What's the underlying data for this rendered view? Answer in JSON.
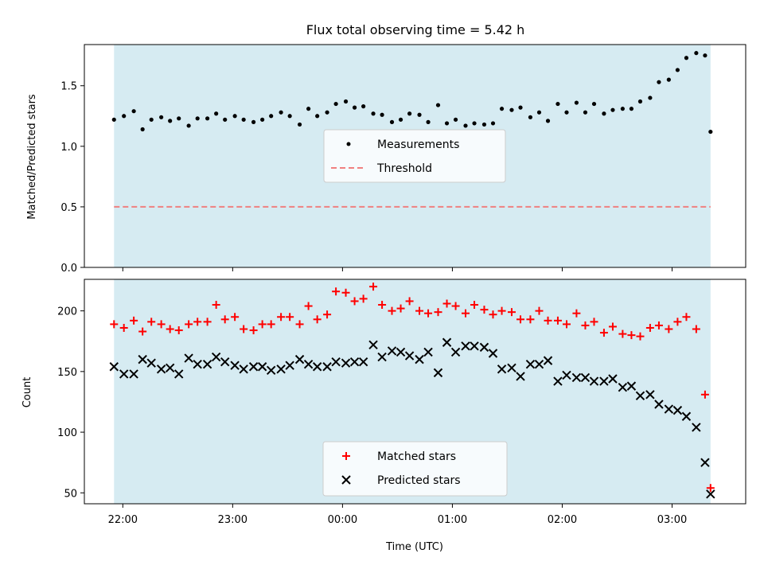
{
  "title": "Flux total observing time = 5.42 h",
  "chart_data": [
    {
      "type": "scatter",
      "ylabel": "Matched/Predicted stars",
      "xlabel": "",
      "x_ticks": [
        "22:00",
        "23:00",
        "00:00",
        "01:00",
        "02:00",
        "03:00"
      ],
      "y_ticks": [
        "0.0",
        "0.5",
        "1.0",
        "1.5"
      ],
      "ylim": [
        0,
        1.84
      ],
      "xlim": [
        -0.35,
        5.67
      ],
      "x_unit": "hours after 22:00 UTC",
      "shaded_span": [
        -0.08,
        5.35
      ],
      "shade_color": "#add8e6",
      "legend_position": "center",
      "series": [
        {
          "name": "Measurements",
          "marker": "dot",
          "color": "#000000",
          "x": [
            -0.08,
            0.01,
            0.1,
            0.18,
            0.26,
            0.35,
            0.43,
            0.51,
            0.6,
            0.68,
            0.77,
            0.85,
            0.93,
            1.02,
            1.1,
            1.19,
            1.27,
            1.35,
            1.44,
            1.52,
            1.61,
            1.69,
            1.77,
            1.86,
            1.94,
            2.03,
            2.11,
            2.19,
            2.28,
            2.36,
            2.45,
            2.53,
            2.61,
            2.7,
            2.78,
            2.87,
            2.95,
            3.03,
            3.12,
            3.2,
            3.29,
            3.37,
            3.45,
            3.54,
            3.62,
            3.71,
            3.79,
            3.87,
            3.96,
            4.04,
            4.13,
            4.21,
            4.29,
            4.38,
            4.46,
            4.55,
            4.63,
            4.71,
            4.8,
            4.88,
            4.97,
            5.05,
            5.13,
            5.22,
            5.3,
            5.35
          ],
          "y": [
            1.22,
            1.25,
            1.29,
            1.14,
            1.22,
            1.24,
            1.21,
            1.23,
            1.17,
            1.23,
            1.23,
            1.27,
            1.22,
            1.25,
            1.22,
            1.2,
            1.22,
            1.25,
            1.28,
            1.25,
            1.18,
            1.31,
            1.25,
            1.28,
            1.35,
            1.37,
            1.32,
            1.33,
            1.27,
            1.26,
            1.2,
            1.22,
            1.27,
            1.26,
            1.2,
            1.34,
            1.19,
            1.22,
            1.17,
            1.19,
            1.18,
            1.19,
            1.31,
            1.3,
            1.32,
            1.24,
            1.28,
            1.21,
            1.35,
            1.28,
            1.36,
            1.28,
            1.35,
            1.27,
            1.3,
            1.31,
            1.31,
            1.37,
            1.4,
            1.53,
            1.55,
            1.63,
            1.73,
            1.77,
            1.75,
            1.12
          ]
        },
        {
          "name": "Threshold",
          "marker": "dashed-line",
          "color": "#f08080",
          "x": [
            -0.08,
            5.35
          ],
          "y": [
            0.5,
            0.5
          ]
        }
      ]
    },
    {
      "type": "scatter",
      "ylabel": "Count",
      "xlabel": "Time (UTC)",
      "x_ticks": [
        "22:00",
        "23:00",
        "00:00",
        "01:00",
        "02:00",
        "03:00"
      ],
      "y_ticks": [
        "50",
        "100",
        "150",
        "200"
      ],
      "ylim": [
        41,
        226
      ],
      "xlim": [
        -0.35,
        5.67
      ],
      "x_unit": "hours after 22:00 UTC",
      "shaded_span": [
        -0.08,
        5.35
      ],
      "shade_color": "#add8e6",
      "legend_position": "lower center",
      "series": [
        {
          "name": "Matched stars",
          "marker": "plus",
          "color": "#ff0000",
          "x": [
            -0.08,
            0.01,
            0.1,
            0.18,
            0.26,
            0.35,
            0.43,
            0.51,
            0.6,
            0.68,
            0.77,
            0.85,
            0.93,
            1.02,
            1.1,
            1.19,
            1.27,
            1.35,
            1.44,
            1.52,
            1.61,
            1.69,
            1.77,
            1.86,
            1.94,
            2.03,
            2.11,
            2.19,
            2.28,
            2.36,
            2.45,
            2.53,
            2.61,
            2.7,
            2.78,
            2.87,
            2.95,
            3.03,
            3.12,
            3.2,
            3.29,
            3.37,
            3.45,
            3.54,
            3.62,
            3.71,
            3.79,
            3.87,
            3.96,
            4.04,
            4.13,
            4.21,
            4.29,
            4.38,
            4.46,
            4.55,
            4.63,
            4.71,
            4.8,
            4.88,
            4.97,
            5.05,
            5.13,
            5.22,
            5.3,
            5.35
          ],
          "y": [
            189,
            186,
            192,
            183,
            191,
            189,
            185,
            184,
            189,
            191,
            191,
            205,
            193,
            195,
            185,
            184,
            189,
            189,
            195,
            195,
            189,
            204,
            193,
            197,
            216,
            215,
            208,
            210,
            220,
            205,
            200,
            202,
            208,
            200,
            198,
            199,
            206,
            204,
            198,
            205,
            201,
            197,
            200,
            199,
            193,
            193,
            200,
            192,
            192,
            189,
            198,
            188,
            191,
            182,
            187,
            181,
            180,
            179,
            186,
            188,
            185,
            191,
            195,
            185,
            131,
            54
          ]
        },
        {
          "name": "Predicted stars",
          "marker": "x",
          "color": "#000000",
          "x": [
            -0.08,
            0.01,
            0.1,
            0.18,
            0.26,
            0.35,
            0.43,
            0.51,
            0.6,
            0.68,
            0.77,
            0.85,
            0.93,
            1.02,
            1.1,
            1.19,
            1.27,
            1.35,
            1.44,
            1.52,
            1.61,
            1.69,
            1.77,
            1.86,
            1.94,
            2.03,
            2.11,
            2.19,
            2.28,
            2.36,
            2.45,
            2.53,
            2.61,
            2.7,
            2.78,
            2.87,
            2.95,
            3.03,
            3.12,
            3.2,
            3.29,
            3.37,
            3.45,
            3.54,
            3.62,
            3.71,
            3.79,
            3.87,
            3.96,
            4.04,
            4.13,
            4.21,
            4.29,
            4.38,
            4.46,
            4.55,
            4.63,
            4.71,
            4.8,
            4.88,
            4.97,
            5.05,
            5.13,
            5.22,
            5.3,
            5.35
          ],
          "y": [
            154,
            148,
            148,
            160,
            157,
            152,
            153,
            148,
            161,
            156,
            156,
            162,
            158,
            155,
            152,
            154,
            154,
            151,
            152,
            155,
            160,
            156,
            154,
            154,
            158,
            157,
            158,
            158,
            172,
            162,
            167,
            166,
            163,
            160,
            166,
            149,
            174,
            166,
            171,
            171,
            170,
            165,
            152,
            153,
            146,
            156,
            156,
            159,
            142,
            147,
            145,
            145,
            142,
            142,
            144,
            137,
            138,
            130,
            131,
            123,
            119,
            118,
            113,
            104,
            75,
            49
          ]
        }
      ]
    }
  ]
}
